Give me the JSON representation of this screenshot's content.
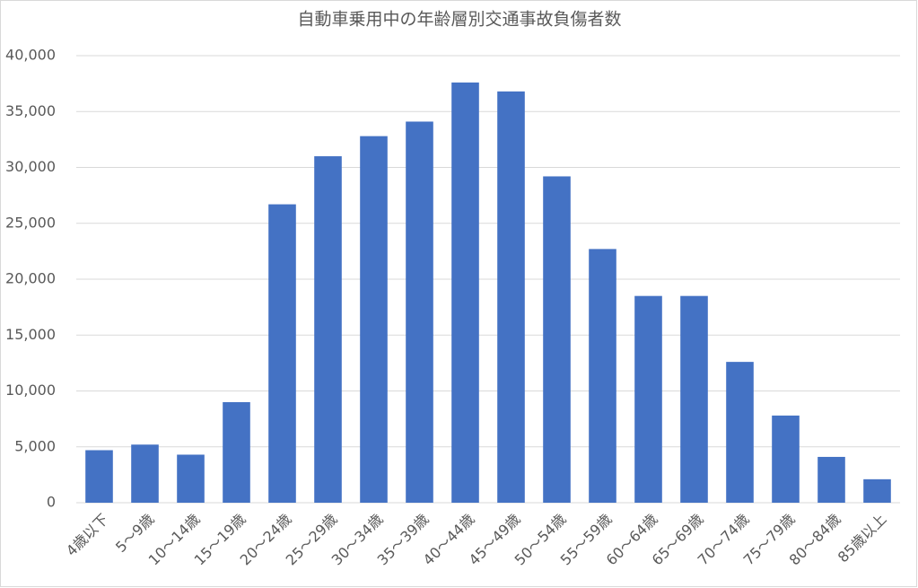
{
  "chart_data": {
    "type": "bar",
    "title": "自動車乗用中の年齢層別交通事故負傷者数",
    "categories": [
      "4歳以下",
      "5～9歳",
      "10～14歳",
      "15～19歳",
      "20～24歳",
      "25～29歳",
      "30～34歳",
      "35～39歳",
      "40～44歳",
      "45～49歳",
      "50～54歳",
      "55～59歳",
      "60～64歳",
      "65～69歳",
      "70～74歳",
      "75～79歳",
      "80～84歳",
      "85歳以上"
    ],
    "values": [
      4700,
      5200,
      4300,
      9000,
      26700,
      31000,
      32800,
      34100,
      37600,
      36800,
      29200,
      22700,
      18500,
      18500,
      12600,
      7800,
      4100,
      2100
    ],
    "color": "#4472c4",
    "ylim": [
      0,
      40000
    ],
    "yticks": [
      0,
      {
        "value": 5000,
        "label": "5,000"
      },
      {
        "value": 10000,
        "label": "10,000"
      },
      {
        "value": 15000,
        "label": "15,000"
      },
      {
        "value": 20000,
        "label": "20,000"
      },
      {
        "value": 25000,
        "label": "25,000"
      },
      {
        "value": 30000,
        "label": "30,000"
      },
      {
        "value": 35000,
        "label": "35,000"
      },
      {
        "value": 40000,
        "label": "40,000"
      }
    ],
    "grid": true
  }
}
